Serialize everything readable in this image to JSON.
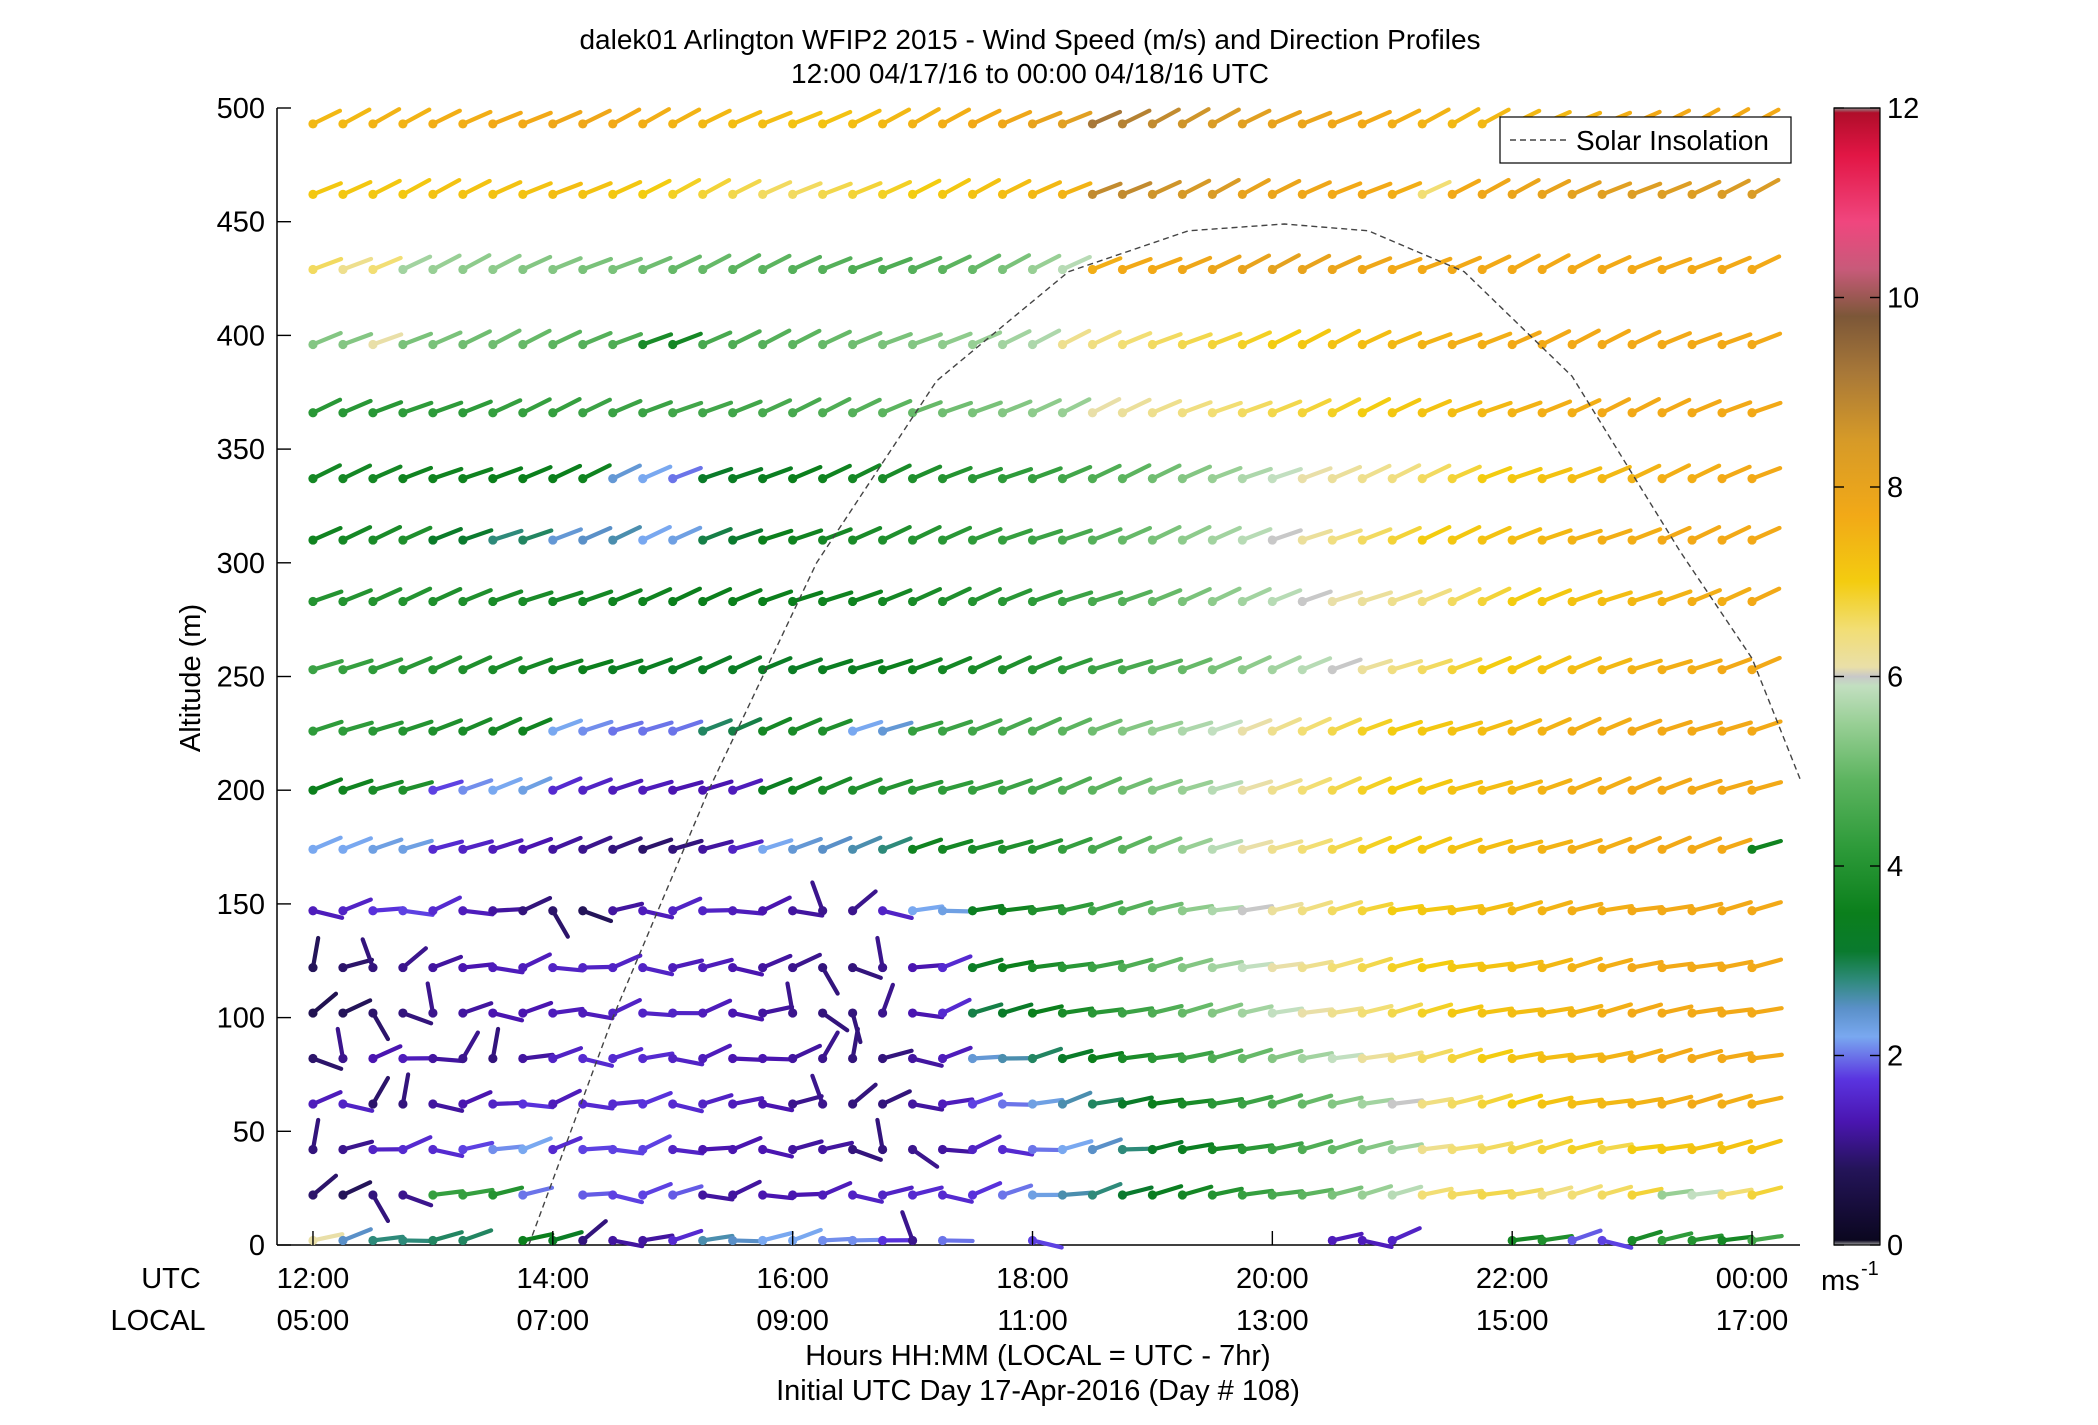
{
  "chart_data": {
    "type": "wind-barb-profile",
    "title": "dalek01 Arlington WFIP2 2015 - Wind Speed (m/s) and Direction Profiles",
    "subtitle": "12:00 04/17/16 to 00:00 04/18/16  UTC",
    "ylabel": "Altitude (m)",
    "xlabel_line1": "Hours HH:MM  (LOCAL = UTC - 7hr)",
    "xlabel_line2": "Initial UTC Day 17-Apr-2016 (Day # 108)",
    "x_row_labels": {
      "utc": "UTC",
      "local": "LOCAL"
    },
    "x_ticks_utc": [
      "12:00",
      "14:00",
      "16:00",
      "18:00",
      "20:00",
      "22:00",
      "00:00"
    ],
    "x_ticks_local": [
      "05:00",
      "07:00",
      "09:00",
      "11:00",
      "13:00",
      "15:00",
      "17:00"
    ],
    "x_tick_hours": [
      12,
      14,
      16,
      18,
      20,
      22,
      24
    ],
    "xlim_hours": [
      11.7,
      24.4
    ],
    "ylim": [
      0,
      500
    ],
    "y_ticks": [
      0,
      50,
      100,
      150,
      200,
      250,
      300,
      350,
      400,
      450,
      500
    ],
    "altitudes": [
      2,
      22,
      42,
      62,
      82,
      102,
      122,
      147,
      174,
      200,
      226,
      253,
      283,
      310,
      337,
      366,
      396,
      429,
      462,
      493
    ],
    "times_start_hour": 12.0,
    "times_step_hour": 0.25,
    "times_count": 49,
    "speed_grid_description": "rows = altitudes (low to high), columns = times (12:00 to 00:00, 15-min steps); values in m/s; null = missing",
    "speed_grid": [
      [
        6.1,
        2.5,
        2.8,
        2.8,
        2.9,
        2.9,
        null,
        3.5,
        3.3,
        1.0,
        1.2,
        1.2,
        1.6,
        2.6,
        2.5,
        2.2,
        2.2,
        2.1,
        2.1,
        1.7,
        1.1,
        2.0,
        null,
        null,
        1.8,
        null,
        null,
        null,
        null,
        null,
        null,
        null,
        null,
        null,
        1.4,
        1.4,
        1.5,
        null,
        null,
        null,
        3.7,
        3.9,
        1.9,
        1.8,
        3.8,
        4.2,
        4.0,
        3.7,
        4.5
      ],
      [
        0.9,
        0.8,
        1.0,
        1.1,
        4.3,
        4.3,
        4.0,
        2.0,
        null,
        1.9,
        1.8,
        1.8,
        1.9,
        1.2,
        1.2,
        1.3,
        1.3,
        1.4,
        1.5,
        1.5,
        1.6,
        1.6,
        1.7,
        2.0,
        2.3,
        2.6,
        2.8,
        3.1,
        3.4,
        3.7,
        4.0,
        4.3,
        4.6,
        4.9,
        5.2,
        5.5,
        5.8,
        6.5,
        6.6,
        6.7,
        6.6,
        6.4,
        6.5,
        6.6,
        6.8,
        5.5,
        5.9,
        6.5,
        6.8
      ],
      [
        1.0,
        1.1,
        1.5,
        1.6,
        1.6,
        1.8,
        2.1,
        2.2,
        1.6,
        1.8,
        1.8,
        1.8,
        1.5,
        1.3,
        1.3,
        1.3,
        1.2,
        1.2,
        1.0,
        1.0,
        1.1,
        1.2,
        1.5,
        1.6,
        2.0,
        2.2,
        2.5,
        2.8,
        3.2,
        3.4,
        3.7,
        4.1,
        4.4,
        4.7,
        5.0,
        5.3,
        5.6,
        6.3,
        6.5,
        6.6,
        6.7,
        6.8,
        6.9,
        6.7,
        7.0,
        7.1,
        7.2,
        7.2,
        7.2
      ],
      [
        1.4,
        1.5,
        0.9,
        1.0,
        1.2,
        1.3,
        1.5,
        1.7,
        1.4,
        1.6,
        1.6,
        1.7,
        1.6,
        1.5,
        1.4,
        1.3,
        1.1,
        1.1,
        1.0,
        1.0,
        1.2,
        1.4,
        1.8,
        2.0,
        2.3,
        2.6,
        2.9,
        3.2,
        3.5,
        3.8,
        4.1,
        4.4,
        4.7,
        5.0,
        5.3,
        5.6,
        6.0,
        6.4,
        6.6,
        6.8,
        7.0,
        7.2,
        7.3,
        7.4,
        7.5,
        7.6,
        7.7,
        7.6,
        7.6
      ],
      [
        0.9,
        1.1,
        1.3,
        1.4,
        1.2,
        1.1,
        1.0,
        1.2,
        1.5,
        1.6,
        1.6,
        1.6,
        1.5,
        1.4,
        1.3,
        1.3,
        1.2,
        1.1,
        1.0,
        1.0,
        1.2,
        1.4,
        2.4,
        2.6,
        2.9,
        3.2,
        3.5,
        3.8,
        4.1,
        4.4,
        4.7,
        5.0,
        5.3,
        5.6,
        5.9,
        6.2,
        6.4,
        6.6,
        6.8,
        7.0,
        7.2,
        7.3,
        7.4,
        7.5,
        7.6,
        7.7,
        7.7,
        7.7,
        7.7
      ],
      [
        0.7,
        0.8,
        0.9,
        1.0,
        1.1,
        1.2,
        1.3,
        1.3,
        1.4,
        1.4,
        1.5,
        1.5,
        1.5,
        1.4,
        1.3,
        1.2,
        1.1,
        1.0,
        1.0,
        1.1,
        1.3,
        1.6,
        3.0,
        3.2,
        3.5,
        3.8,
        4.1,
        4.4,
        4.7,
        5.0,
        5.3,
        5.6,
        5.9,
        6.1,
        6.3,
        6.5,
        6.7,
        6.9,
        7.1,
        7.2,
        7.3,
        7.4,
        7.5,
        7.6,
        7.7,
        7.7,
        7.7,
        7.7,
        7.7
      ],
      [
        0.8,
        0.9,
        1.0,
        1.1,
        1.2,
        1.3,
        1.4,
        1.4,
        1.5,
        1.5,
        1.5,
        1.5,
        1.4,
        1.4,
        1.3,
        1.2,
        1.1,
        1.0,
        1.0,
        1.1,
        1.3,
        1.6,
        3.3,
        3.5,
        3.8,
        4.1,
        4.4,
        4.7,
        5.0,
        5.3,
        5.6,
        5.9,
        6.1,
        6.3,
        6.5,
        6.7,
        6.9,
        7.0,
        7.1,
        7.2,
        7.3,
        7.4,
        7.5,
        7.6,
        7.7,
        7.7,
        7.7,
        7.7,
        7.7
      ],
      [
        1.4,
        1.5,
        1.7,
        1.8,
        1.6,
        1.4,
        1.2,
        1.0,
        0.9,
        0.8,
        1.2,
        1.4,
        1.5,
        1.5,
        1.4,
        1.3,
        1.2,
        1.1,
        1.1,
        1.5,
        2.2,
        2.3,
        3.4,
        3.6,
        3.9,
        4.2,
        4.5,
        4.8,
        5.1,
        5.4,
        5.7,
        6.0,
        6.2,
        6.4,
        6.6,
        6.8,
        7.0,
        7.1,
        7.2,
        7.3,
        7.4,
        7.5,
        7.6,
        7.6,
        7.7,
        7.7,
        7.7,
        7.7,
        7.7
      ],
      [
        2.2,
        2.2,
        2.3,
        2.3,
        1.6,
        1.5,
        1.4,
        1.3,
        1.2,
        1.1,
        1.0,
        0.9,
        1.0,
        1.2,
        1.5,
        2.2,
        2.4,
        2.5,
        2.6,
        2.8,
        3.6,
        3.7,
        3.8,
        3.9,
        4.0,
        4.3,
        4.6,
        4.9,
        5.2,
        5.5,
        5.8,
        6.1,
        6.3,
        6.5,
        6.7,
        6.9,
        7.0,
        7.1,
        7.2,
        7.3,
        7.4,
        7.5,
        7.6,
        7.6,
        7.7,
        7.7,
        7.7,
        7.7,
        3.6
      ],
      [
        3.5,
        3.6,
        3.8,
        3.9,
        1.8,
        2.1,
        2.2,
        2.3,
        1.6,
        1.5,
        1.4,
        1.4,
        1.3,
        1.3,
        1.4,
        3.4,
        3.6,
        3.8,
        3.9,
        4.0,
        4.1,
        4.2,
        4.3,
        4.4,
        4.5,
        4.7,
        4.9,
        5.1,
        5.3,
        5.5,
        5.8,
        6.1,
        6.3,
        6.5,
        6.7,
        6.9,
        7.0,
        7.1,
        7.2,
        7.3,
        7.4,
        7.5,
        7.6,
        7.6,
        7.7,
        7.7,
        7.7,
        7.7,
        7.7
      ],
      [
        4.2,
        4.2,
        4.1,
        4.0,
        3.9,
        3.8,
        3.7,
        3.6,
        2.2,
        2.1,
        2.0,
        2.0,
        2.0,
        2.9,
        3.0,
        3.7,
        3.8,
        3.9,
        2.2,
        2.4,
        4.3,
        4.4,
        4.5,
        4.6,
        4.7,
        4.9,
        5.1,
        5.3,
        5.5,
        5.7,
        5.9,
        6.1,
        6.3,
        6.5,
        6.7,
        6.9,
        7.0,
        7.1,
        7.2,
        7.3,
        7.4,
        7.5,
        7.6,
        7.6,
        7.7,
        7.7,
        7.7,
        7.7,
        7.7
      ],
      [
        4.4,
        4.3,
        4.2,
        4.1,
        4.0,
        3.9,
        3.8,
        3.7,
        3.6,
        3.5,
        3.4,
        3.4,
        3.3,
        3.3,
        3.3,
        3.3,
        3.3,
        3.4,
        3.4,
        3.5,
        3.6,
        3.7,
        3.8,
        3.9,
        4.0,
        4.2,
        4.4,
        4.6,
        4.8,
        5.0,
        5.2,
        5.4,
        5.6,
        5.8,
        6.0,
        6.2,
        6.4,
        6.6,
        6.8,
        7.0,
        7.1,
        7.2,
        7.3,
        7.4,
        7.5,
        7.6,
        7.6,
        7.7,
        7.7
      ],
      [
        4.0,
        4.0,
        4.0,
        4.0,
        3.9,
        3.9,
        3.8,
        3.8,
        3.7,
        3.7,
        3.6,
        3.6,
        3.5,
        3.5,
        3.5,
        3.5,
        3.5,
        3.6,
        3.6,
        3.7,
        3.8,
        3.9,
        4.0,
        4.1,
        4.2,
        4.4,
        4.6,
        4.8,
        5.0,
        5.2,
        5.4,
        5.6,
        5.8,
        6.0,
        6.1,
        6.2,
        6.3,
        6.4,
        6.6,
        6.8,
        7.0,
        7.1,
        7.2,
        7.3,
        7.4,
        7.5,
        7.6,
        7.6,
        7.7
      ],
      [
        3.6,
        3.7,
        3.8,
        3.9,
        3.2,
        3.1,
        2.8,
        2.9,
        2.4,
        2.5,
        2.6,
        2.2,
        2.3,
        3.0,
        3.1,
        3.5,
        3.6,
        3.7,
        3.8,
        3.9,
        4.0,
        4.1,
        4.2,
        4.3,
        4.4,
        4.6,
        4.8,
        5.0,
        5.2,
        5.4,
        5.6,
        5.8,
        6.0,
        6.2,
        6.4,
        6.6,
        6.8,
        7.0,
        7.1,
        7.2,
        7.3,
        7.4,
        7.5,
        7.6,
        7.6,
        7.7,
        7.7,
        7.7,
        7.7
      ],
      [
        3.7,
        3.7,
        3.7,
        3.6,
        3.6,
        3.6,
        3.5,
        3.5,
        3.5,
        3.6,
        2.4,
        2.2,
        2.0,
        3.2,
        3.3,
        3.4,
        3.5,
        3.6,
        3.7,
        3.8,
        3.9,
        4.0,
        4.1,
        4.2,
        4.3,
        4.5,
        4.7,
        4.9,
        5.1,
        5.3,
        5.5,
        5.7,
        5.9,
        6.1,
        6.2,
        6.3,
        6.4,
        6.6,
        6.8,
        7.0,
        7.1,
        7.2,
        7.3,
        7.4,
        7.5,
        7.6,
        7.6,
        7.7,
        7.7
      ],
      [
        4.1,
        4.1,
        4.1,
        4.2,
        4.2,
        4.2,
        4.3,
        4.3,
        4.3,
        4.4,
        4.4,
        4.4,
        4.5,
        4.5,
        4.5,
        4.6,
        4.6,
        4.7,
        4.8,
        4.9,
        5.0,
        5.1,
        5.2,
        5.3,
        5.4,
        5.5,
        6.1,
        6.2,
        6.3,
        6.4,
        6.5,
        6.6,
        6.7,
        6.8,
        6.9,
        7.0,
        7.1,
        7.2,
        7.3,
        7.4,
        7.5,
        7.6,
        7.6,
        7.7,
        7.7,
        7.7,
        7.7,
        7.7,
        7.7
      ],
      [
        5.3,
        5.3,
        6.1,
        5.2,
        5.2,
        5.1,
        5.1,
        5.0,
        4.9,
        4.8,
        4.7,
        3.8,
        3.7,
        4.6,
        4.7,
        4.8,
        4.9,
        5.0,
        5.1,
        5.2,
        5.3,
        5.4,
        5.5,
        5.6,
        5.7,
        6.3,
        6.4,
        6.5,
        6.6,
        6.7,
        6.8,
        6.9,
        7.0,
        7.1,
        7.2,
        7.3,
        7.4,
        7.5,
        7.6,
        7.6,
        7.7,
        7.7,
        7.7,
        7.7,
        7.7,
        7.7,
        7.7,
        7.7,
        7.7
      ],
      [
        6.6,
        6.3,
        6.5,
        5.6,
        5.5,
        5.4,
        5.4,
        5.3,
        5.3,
        5.2,
        5.2,
        5.1,
        5.0,
        5.0,
        4.9,
        4.9,
        4.8,
        4.8,
        4.7,
        4.7,
        4.8,
        4.9,
        5.0,
        5.2,
        5.5,
        5.8,
        7.6,
        7.7,
        7.7,
        7.8,
        7.9,
        8.0,
        8.1,
        8.0,
        7.9,
        7.8,
        7.7,
        7.7,
        7.7,
        7.7,
        7.7,
        7.7,
        7.7,
        7.7,
        7.7,
        7.7,
        7.7,
        7.7,
        7.7
      ],
      [
        7.1,
        7.1,
        7.1,
        7.1,
        7.2,
        7.2,
        7.2,
        7.2,
        7.3,
        7.2,
        7.1,
        7.0,
        6.9,
        6.8,
        6.7,
        6.6,
        6.6,
        6.7,
        6.8,
        6.9,
        7.0,
        7.1,
        7.2,
        7.3,
        7.4,
        7.5,
        8.8,
        8.8,
        8.6,
        8.5,
        8.4,
        8.0,
        7.9,
        7.8,
        7.7,
        7.7,
        7.6,
        6.5,
        7.7,
        7.8,
        7.9,
        8.0,
        8.1,
        8.2,
        8.3,
        8.3,
        8.3,
        8.4,
        8.4
      ],
      [
        7.4,
        7.4,
        7.5,
        7.5,
        7.6,
        7.6,
        7.7,
        7.7,
        7.8,
        7.8,
        7.7,
        7.6,
        7.5,
        7.4,
        7.3,
        7.3,
        7.2,
        7.2,
        7.3,
        7.4,
        7.5,
        7.6,
        7.7,
        7.8,
        8.0,
        8.2,
        9.2,
        9.0,
        8.8,
        8.6,
        8.4,
        8.2,
        8.0,
        7.9,
        7.8,
        7.7,
        7.6,
        7.5,
        7.4,
        7.4,
        7.4,
        7.4,
        7.5,
        7.6,
        7.7,
        7.7,
        7.7,
        7.7,
        7.7
      ]
    ],
    "direction_note": "Barbs extend toward the upwind direction; low, slow winds rotate, upper levels mostly from the south-west",
    "legend": {
      "entries": [
        {
          "label": "Solar Insolation",
          "style": "dashed"
        }
      ],
      "placement": "top-right"
    },
    "solar_insolation_curve": {
      "description": "dashed curve of relative solar insolation drawn against the altitude axis",
      "points_hour_altitude": [
        [
          13.8,
          0
        ],
        [
          14.5,
          100
        ],
        [
          15.3,
          200
        ],
        [
          16.2,
          300
        ],
        [
          17.2,
          380
        ],
        [
          18.3,
          428
        ],
        [
          19.3,
          446
        ],
        [
          20.1,
          449
        ],
        [
          20.8,
          446
        ],
        [
          21.6,
          428
        ],
        [
          22.5,
          382
        ],
        [
          23.4,
          305
        ],
        [
          24.0,
          258
        ],
        [
          24.5,
          205
        ]
      ]
    },
    "colorbar": {
      "unit_label": "ms",
      "unit_superscript": "-1",
      "range": [
        0,
        12
      ],
      "ticks": [
        0,
        2,
        4,
        6,
        8,
        10,
        12
      ],
      "colormap": [
        {
          "v": 0.0,
          "c": "#a0a0a0"
        },
        {
          "v": 0.05,
          "c": "#0b0720"
        },
        {
          "v": 0.8,
          "c": "#241459"
        },
        {
          "v": 1.3,
          "c": "#4a15b0"
        },
        {
          "v": 1.75,
          "c": "#5a34e0"
        },
        {
          "v": 2.2,
          "c": "#79a8f0"
        },
        {
          "v": 2.5,
          "c": "#5a90c8"
        },
        {
          "v": 2.8,
          "c": "#2e8a7a"
        },
        {
          "v": 3.1,
          "c": "#0a7a2e"
        },
        {
          "v": 3.5,
          "c": "#0b7f1c"
        },
        {
          "v": 4.2,
          "c": "#2e9b3a"
        },
        {
          "v": 4.9,
          "c": "#5cb45f"
        },
        {
          "v": 5.5,
          "c": "#98cf95"
        },
        {
          "v": 5.9,
          "c": "#c2dfc0"
        },
        {
          "v": 6.0,
          "c": "#c8c8c8"
        },
        {
          "v": 6.1,
          "c": "#e9dfa8"
        },
        {
          "v": 6.5,
          "c": "#f2de74"
        },
        {
          "v": 7.0,
          "c": "#f3cc10"
        },
        {
          "v": 7.7,
          "c": "#f2a917"
        },
        {
          "v": 8.5,
          "c": "#d69a28"
        },
        {
          "v": 9.2,
          "c": "#a87838"
        },
        {
          "v": 9.8,
          "c": "#7c5738"
        },
        {
          "v": 10.3,
          "c": "#c85a7a"
        },
        {
          "v": 10.8,
          "c": "#f0467e"
        },
        {
          "v": 11.5,
          "c": "#e21645"
        },
        {
          "v": 11.95,
          "c": "#b00d2a"
        },
        {
          "v": 12.0,
          "c": "#909090"
        }
      ]
    }
  }
}
